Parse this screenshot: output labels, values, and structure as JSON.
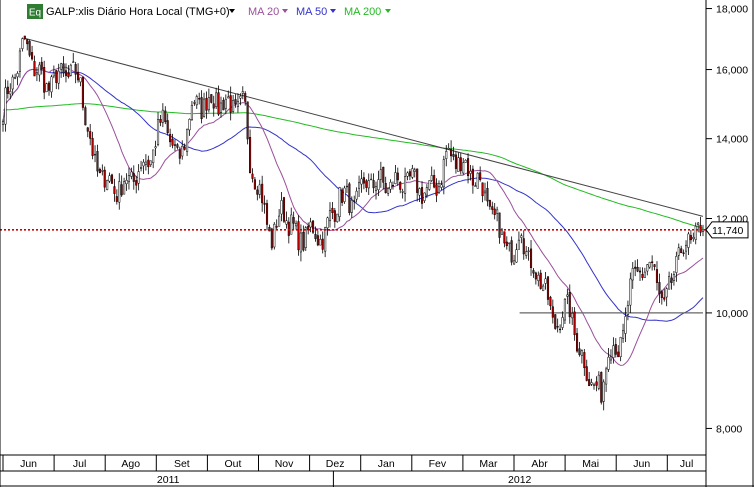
{
  "chart_data": {
    "type": "candlestick",
    "title": "GALP:xlis Diário Hora Local (TMG+0)",
    "badge": "Eq",
    "legend": [
      {
        "label": "MA 20",
        "color": "#9b4f9b"
      },
      {
        "label": "MA 50",
        "color": "#3333cc"
      },
      {
        "label": "MA 200",
        "color": "#22bb22"
      }
    ],
    "colors": {
      "up": "#ffffff",
      "down": "#b30000",
      "wick": "#000000",
      "trendline": "#444444",
      "support": "#666666",
      "price_line": "#cc0000"
    },
    "y_axis": {
      "scale": "log",
      "range": [
        7600,
        18300
      ],
      "ticks": [
        "18,000",
        "16,000",
        "14,000",
        "12,000",
        "10,000",
        "8,000"
      ],
      "tick_values": [
        18000,
        16000,
        14000,
        12000,
        10000,
        8000
      ],
      "side": "right"
    },
    "x_axis": {
      "range": [
        0,
        100
      ],
      "months": [
        "Jun",
        "Jul",
        "Ago",
        "Set",
        "Out",
        "Nov",
        "Dez",
        "Jan",
        "Fev",
        "Mar",
        "Abr",
        "Mai",
        "Jun",
        "Jul"
      ],
      "month_positions": [
        0,
        7.3,
        14.6,
        21.9,
        29.2,
        36.5,
        43.8,
        51.1,
        58.4,
        65.7,
        73,
        80.3,
        87.6,
        94.9
      ],
      "years": [
        "2011",
        "2012"
      ],
      "year_start_positions": [
        0,
        47.2
      ]
    },
    "last_price": {
      "label": "11,740",
      "value": 11740
    },
    "grid": false,
    "anchors": [
      {
        "x": 0,
        "y": 14800
      },
      {
        "x": 3,
        "y": 16800
      },
      {
        "x": 6,
        "y": 15500
      },
      {
        "x": 9,
        "y": 15900
      },
      {
        "x": 11,
        "y": 15700
      },
      {
        "x": 13,
        "y": 13300
      },
      {
        "x": 16,
        "y": 12700
      },
      {
        "x": 18,
        "y": 12900
      },
      {
        "x": 21,
        "y": 13500
      },
      {
        "x": 23,
        "y": 14600
      },
      {
        "x": 25,
        "y": 13300
      },
      {
        "x": 27,
        "y": 14900
      },
      {
        "x": 30,
        "y": 15100
      },
      {
        "x": 33,
        "y": 14900
      },
      {
        "x": 34.5,
        "y": 14900
      },
      {
        "x": 35.3,
        "y": 13500
      },
      {
        "x": 37,
        "y": 12400
      },
      {
        "x": 38.5,
        "y": 11500
      },
      {
        "x": 40,
        "y": 12300
      },
      {
        "x": 42,
        "y": 11500
      },
      {
        "x": 44,
        "y": 11700
      },
      {
        "x": 46,
        "y": 11600
      },
      {
        "x": 48,
        "y": 12600
      },
      {
        "x": 50,
        "y": 12300
      },
      {
        "x": 52,
        "y": 12900
      },
      {
        "x": 55,
        "y": 12800
      },
      {
        "x": 58,
        "y": 12900
      },
      {
        "x": 61,
        "y": 12600
      },
      {
        "x": 62.5,
        "y": 13000
      },
      {
        "x": 63.5,
        "y": 13600
      },
      {
        "x": 66,
        "y": 13300
      },
      {
        "x": 68,
        "y": 12900
      },
      {
        "x": 70,
        "y": 12000
      },
      {
        "x": 73,
        "y": 11100
      },
      {
        "x": 74,
        "y": 12000
      },
      {
        "x": 75,
        "y": 11000
      },
      {
        "x": 77,
        "y": 10700
      },
      {
        "x": 78.5,
        "y": 9800
      },
      {
        "x": 81,
        "y": 10100
      },
      {
        "x": 82.5,
        "y": 9200
      },
      {
        "x": 84,
        "y": 8800
      },
      {
        "x": 85.5,
        "y": 8500
      },
      {
        "x": 86.5,
        "y": 9500
      },
      {
        "x": 88,
        "y": 9200
      },
      {
        "x": 89.5,
        "y": 10400
      },
      {
        "x": 91,
        "y": 10900
      },
      {
        "x": 93,
        "y": 10900
      },
      {
        "x": 94.5,
        "y": 10000
      },
      {
        "x": 96,
        "y": 11000
      },
      {
        "x": 98,
        "y": 11500
      },
      {
        "x": 100,
        "y": 11740
      }
    ],
    "trendline": [
      {
        "x": 3,
        "y": 17000
      },
      {
        "x": 100,
        "y": 12050
      }
    ],
    "support": {
      "x1": 73.8,
      "x2": 100,
      "y": 10000
    }
  }
}
